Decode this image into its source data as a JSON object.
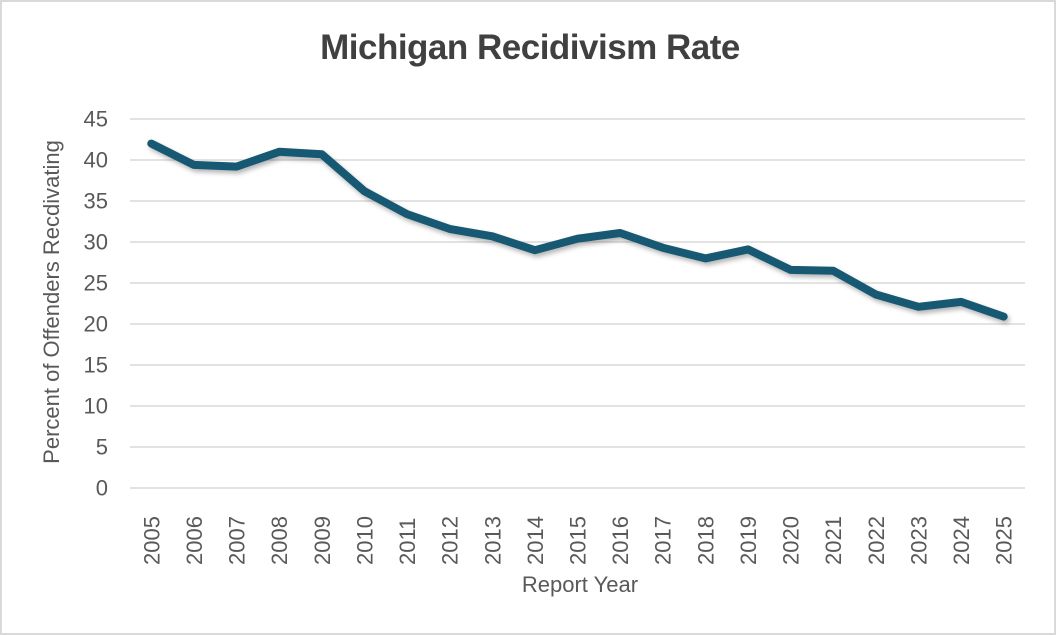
{
  "chart_data": {
    "type": "line",
    "title": "Michigan Recidivism Rate",
    "xlabel": "Report Year",
    "ylabel": "Percent of Offenders Recdivating",
    "categories": [
      "2005",
      "2006",
      "2007",
      "2008",
      "2009",
      "2010",
      "2011",
      "2012",
      "2013",
      "2014",
      "2015",
      "2016",
      "2017",
      "2018",
      "2019",
      "2020",
      "2021",
      "2022",
      "2023",
      "2024",
      "2025"
    ],
    "values": [
      42,
      39.4,
      39.2,
      41,
      40.7,
      36.2,
      33.4,
      31.6,
      30.7,
      29,
      30.4,
      31.1,
      29.3,
      28,
      29.1,
      26.6,
      26.5,
      23.6,
      22.1,
      22.7,
      20.9
    ],
    "ylim": [
      0,
      45
    ],
    "ytick_step": 5,
    "grid": "horizontal-only",
    "legend": "none",
    "colors": {
      "line": "#175873",
      "gridline": "#d9d9d9",
      "tick_label": "#595959",
      "title": "#404040",
      "background": "#ffffff"
    }
  }
}
